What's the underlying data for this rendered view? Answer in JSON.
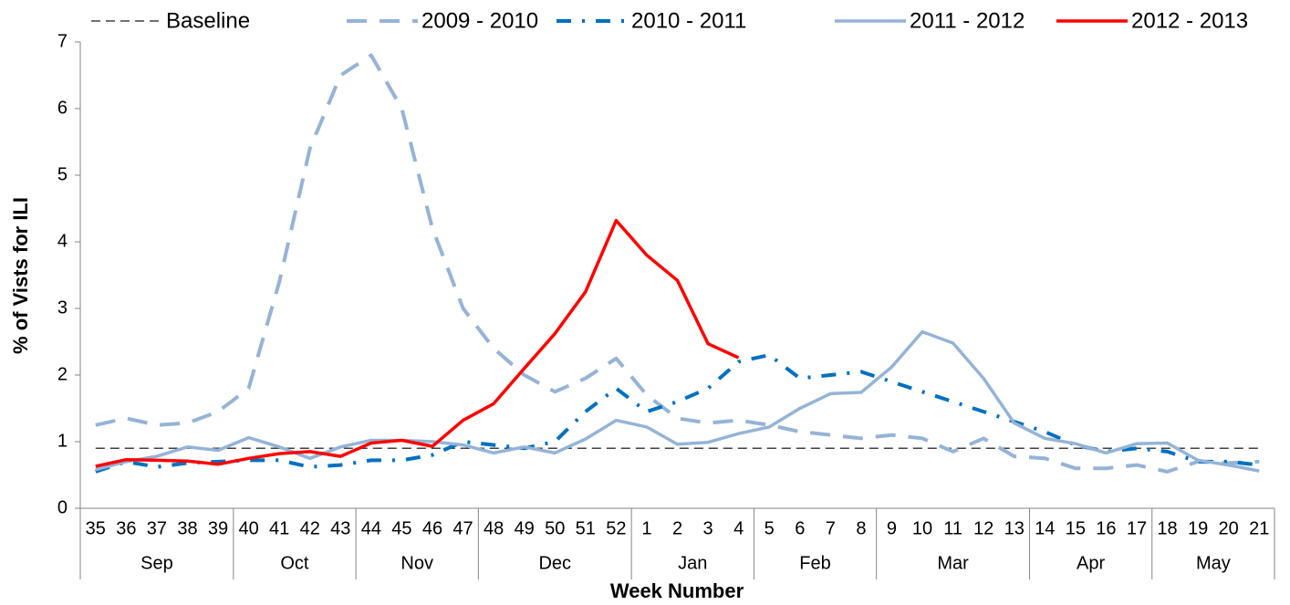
{
  "chart_data": {
    "type": "line",
    "x_label": "Week Number",
    "y_label": "% of Vists for ILI",
    "groups": [
      {
        "name": "Sep",
        "categories": [
          "35",
          "36",
          "37",
          "38",
          "39"
        ]
      },
      {
        "name": "Oct",
        "categories": [
          "40",
          "41",
          "42",
          "43"
        ]
      },
      {
        "name": "Nov",
        "categories": [
          "44",
          "45",
          "46",
          "47"
        ]
      },
      {
        "name": "Dec",
        "categories": [
          "48",
          "49",
          "50",
          "51",
          "52"
        ]
      },
      {
        "name": "Jan",
        "categories": [
          "1",
          "2",
          "3",
          "4"
        ]
      },
      {
        "name": "Feb",
        "categories": [
          "5",
          "6",
          "7",
          "8"
        ]
      },
      {
        "name": "Mar",
        "categories": [
          "9",
          "10",
          "11",
          "12",
          "13"
        ]
      },
      {
        "name": "Apr",
        "categories": [
          "14",
          "15",
          "16",
          "17"
        ]
      },
      {
        "name": "May",
        "categories": [
          "18",
          "19",
          "20",
          "21"
        ]
      }
    ],
    "ylim": [
      0,
      7
    ],
    "yticks": [
      0,
      1,
      2,
      3,
      4,
      5,
      6,
      7
    ],
    "legend": "top",
    "series": [
      {
        "name": "Baseline",
        "color": "#404040",
        "style": "dashed",
        "values": [
          0.9,
          0.9,
          0.9,
          0.9,
          0.9,
          0.9,
          0.9,
          0.9,
          0.9,
          0.9,
          0.9,
          0.9,
          0.9,
          0.9,
          0.9,
          0.9,
          0.9,
          0.9,
          0.9,
          0.9,
          0.9,
          0.9,
          0.9,
          0.9,
          0.9,
          0.9,
          0.9,
          0.9,
          0.9,
          0.9,
          0.9,
          0.9,
          0.9,
          0.9,
          0.9,
          0.9,
          0.9,
          0.9,
          0.9
        ]
      },
      {
        "name": "2009 - 2010",
        "color": "#95b3d7",
        "style": "long-dash",
        "values": [
          1.25,
          1.35,
          1.25,
          1.28,
          1.45,
          1.8,
          3.4,
          5.4,
          6.5,
          6.8,
          6.0,
          4.2,
          3.0,
          2.4,
          2.0,
          1.75,
          1.95,
          2.25,
          1.7,
          1.35,
          1.28,
          1.32,
          1.25,
          1.15,
          1.1,
          1.05,
          1.1,
          1.05,
          0.85,
          1.05,
          0.78,
          0.75,
          0.6,
          0.6,
          0.65,
          0.55,
          0.7,
          0.68,
          0.7
        ]
      },
      {
        "name": "2010 - 2011",
        "color": "#0070c0",
        "style": "dash-dot",
        "values": [
          0.55,
          0.7,
          0.62,
          0.68,
          0.7,
          0.72,
          0.72,
          0.62,
          0.65,
          0.72,
          0.72,
          0.8,
          1.0,
          0.95,
          0.9,
          1.0,
          1.45,
          1.8,
          1.45,
          1.6,
          1.8,
          2.2,
          2.3,
          1.95,
          2.0,
          2.05,
          1.9,
          1.75,
          1.6,
          1.45,
          1.3,
          1.15,
          0.95,
          0.85,
          0.9,
          0.85,
          0.7,
          0.7,
          0.65
        ]
      },
      {
        "name": "2011 - 2012",
        "color": "#95b3d7",
        "style": "solid",
        "values": [
          0.58,
          0.7,
          0.78,
          0.92,
          0.87,
          1.06,
          0.92,
          0.75,
          0.92,
          1.02,
          1.02,
          1.0,
          0.95,
          0.83,
          0.92,
          0.83,
          1.04,
          1.32,
          1.22,
          0.96,
          0.99,
          1.12,
          1.22,
          1.5,
          1.72,
          1.74,
          2.12,
          2.65,
          2.48,
          1.95,
          1.28,
          1.05,
          0.97,
          0.83,
          0.97,
          0.98,
          0.72,
          0.65,
          0.56
        ]
      },
      {
        "name": "2012 - 2013",
        "color": "#ff0000",
        "style": "solid",
        "values": [
          0.63,
          0.73,
          0.72,
          0.71,
          0.66,
          0.75,
          0.82,
          0.85,
          0.78,
          0.98,
          1.02,
          0.93,
          1.32,
          1.57,
          2.1,
          2.62,
          3.25,
          4.32,
          3.8,
          3.42,
          2.47,
          2.26,
          null,
          null,
          null,
          null,
          null,
          null,
          null,
          null,
          null,
          null,
          null,
          null,
          null,
          null,
          null,
          null,
          null
        ]
      }
    ]
  }
}
